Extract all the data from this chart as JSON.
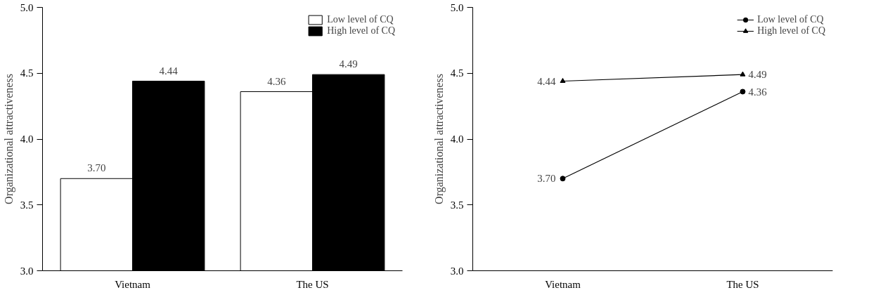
{
  "chart_data": [
    {
      "type": "bar",
      "ylabel": "Organizational attractiveness",
      "categories": [
        "Vietnam",
        "The US"
      ],
      "series": [
        {
          "name": "Low level of CQ",
          "color": "#ffffff",
          "values": [
            3.7,
            4.36
          ],
          "value_labels": [
            "3.70",
            "4.36"
          ]
        },
        {
          "name": "High level of CQ",
          "color": "#000000",
          "values": [
            4.44,
            4.49
          ],
          "value_labels": [
            "4.44",
            "4.49"
          ]
        }
      ],
      "ylim": [
        3.0,
        5.0
      ],
      "yticks": [
        {
          "value": 3.0,
          "label": "3.0"
        },
        {
          "value": 3.5,
          "label": "3.5"
        },
        {
          "value": 4.0,
          "label": "4.0"
        },
        {
          "value": 4.5,
          "label": "4.5"
        },
        {
          "value": 5.0,
          "label": "5.0"
        }
      ],
      "grid": false,
      "legend": "top right"
    },
    {
      "type": "line",
      "ylabel": "Organizational attractiveness",
      "categories": [
        "Vietnam",
        "The US"
      ],
      "series": [
        {
          "name": "Low level of CQ",
          "color": "#000000",
          "values": [
            3.7,
            4.36
          ],
          "value_labels": [
            "3.70",
            "4.36"
          ],
          "marker": "circle"
        },
        {
          "name": "High level of CQ",
          "color": "#000000",
          "values": [
            4.44,
            4.49
          ],
          "value_labels": [
            "4.44",
            "4.49"
          ],
          "marker": "triangle"
        }
      ],
      "ylim": [
        3.0,
        5.0
      ],
      "yticks": [
        {
          "value": 3.0,
          "label": "3.0"
        },
        {
          "value": 3.5,
          "label": "3.5"
        },
        {
          "value": 4.0,
          "label": "4.0"
        },
        {
          "value": 4.5,
          "label": "4.5"
        },
        {
          "value": 5.0,
          "label": "5.0"
        }
      ],
      "grid": false,
      "legend": "top right",
      "line_style": "solid"
    }
  ]
}
